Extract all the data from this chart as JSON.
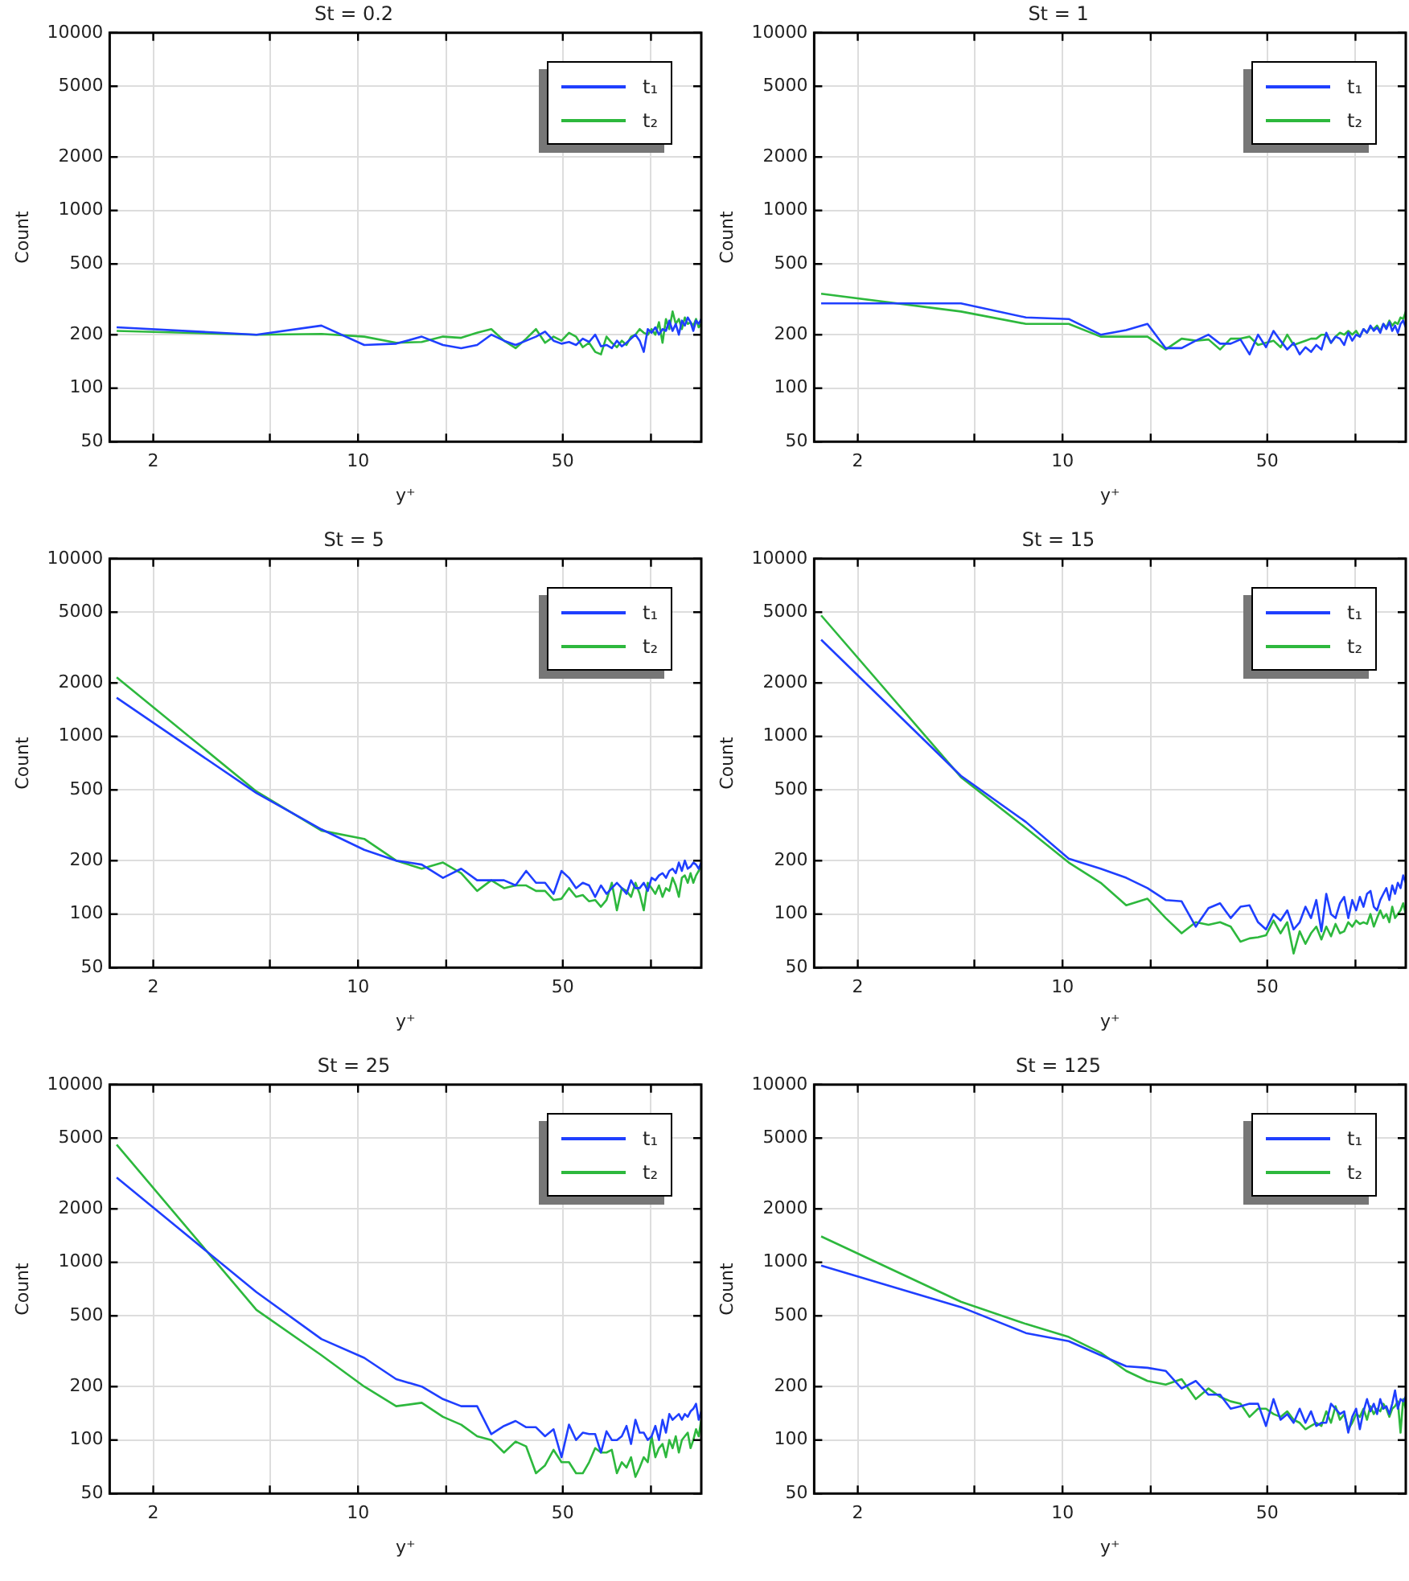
{
  "chart_data": [
    {
      "type": "line",
      "title": "St = 0.2",
      "xlabel": "y⁺",
      "ylabel": "Count",
      "log": "xy",
      "grid": true,
      "legend": "top right",
      "xlim": [
        1.42,
        148.5
      ],
      "ylim": [
        50,
        10000
      ],
      "xticks": [
        2,
        {
          "value": 5,
          "label": null
        },
        10,
        {
          "value": 20,
          "label": null
        },
        50,
        {
          "value": 100,
          "label": null
        }
      ],
      "yticks": [
        50,
        100,
        200,
        500,
        1000,
        2000,
        5000,
        10000
      ],
      "x": [
        1.5,
        4.5,
        7.5,
        10.5,
        13.5,
        16.5,
        19.5,
        22.5,
        25.5,
        28.5,
        31.5,
        34.5,
        37.5,
        40.5,
        43.5,
        46.5,
        49.5,
        52.5,
        55.5,
        58.5,
        61.5,
        64.5,
        67.5,
        70.5,
        73.5,
        76.5,
        79.5,
        82.5,
        85.5,
        88.5,
        91.5,
        94.5,
        97.5,
        100.5,
        103.5,
        106.5,
        109.5,
        112.5,
        115.5,
        118.5,
        121.5,
        124.5,
        127.5,
        130.5,
        133.5,
        136.5,
        139.5,
        142.5,
        145.5,
        148.5
      ],
      "series": [
        {
          "name": "t₁",
          "color": "#1f3fff",
          "values": [
            220,
            200,
            225,
            175,
            178,
            195,
            175,
            168,
            175,
            200,
            185,
            175,
            185,
            195,
            208,
            185,
            178,
            182,
            175,
            190,
            182,
            200,
            172,
            175,
            168,
            185,
            172,
            180,
            190,
            200,
            185,
            160,
            215,
            205,
            220,
            200,
            215,
            210,
            240,
            210,
            230,
            200,
            240,
            225,
            250,
            235,
            210,
            240,
            230,
            245
          ]
        },
        {
          "name": "t₂",
          "color": "#2db83d",
          "values": [
            210,
            200,
            202,
            195,
            180,
            182,
            195,
            192,
            205,
            215,
            185,
            168,
            190,
            215,
            180,
            195,
            185,
            205,
            195,
            170,
            180,
            160,
            155,
            195,
            180,
            170,
            185,
            175,
            195,
            200,
            215,
            205,
            200,
            215,
            200,
            235,
            180,
            245,
            215,
            270,
            230,
            245,
            215,
            250,
            230,
            235,
            225,
            245,
            220,
            230
          ]
        }
      ]
    },
    {
      "type": "line",
      "title": "St = 1",
      "xlabel": "y⁺",
      "ylabel": "Count",
      "log": "xy",
      "grid": true,
      "legend": "top right",
      "xlim": [
        1.42,
        148.5
      ],
      "ylim": [
        50,
        10000
      ],
      "xticks": [
        2,
        {
          "value": 5,
          "label": null
        },
        10,
        {
          "value": 20,
          "label": null
        },
        50,
        {
          "value": 100,
          "label": null
        }
      ],
      "yticks": [
        50,
        100,
        200,
        500,
        1000,
        2000,
        5000,
        10000
      ],
      "x": [
        1.5,
        4.5,
        7.5,
        10.5,
        13.5,
        16.5,
        19.5,
        22.5,
        25.5,
        28.5,
        31.5,
        34.5,
        37.5,
        40.5,
        43.5,
        46.5,
        49.5,
        52.5,
        55.5,
        58.5,
        61.5,
        64.5,
        67.5,
        70.5,
        73.5,
        76.5,
        79.5,
        82.5,
        85.5,
        88.5,
        91.5,
        94.5,
        97.5,
        100.5,
        103.5,
        106.5,
        109.5,
        112.5,
        115.5,
        118.5,
        121.5,
        124.5,
        127.5,
        130.5,
        133.5,
        136.5,
        139.5,
        142.5,
        145.5,
        148.5
      ],
      "series": [
        {
          "name": "t₁",
          "color": "#1f3fff",
          "values": [
            300,
            300,
            250,
            245,
            200,
            212,
            230,
            168,
            168,
            185,
            200,
            178,
            178,
            188,
            155,
            200,
            170,
            210,
            185,
            165,
            180,
            155,
            170,
            160,
            175,
            165,
            205,
            180,
            195,
            190,
            175,
            205,
            185,
            200,
            195,
            215,
            205,
            225,
            210,
            220,
            205,
            230,
            215,
            235,
            210,
            225,
            205,
            230,
            240,
            220
          ]
        },
        {
          "name": "t₂",
          "color": "#2db83d",
          "values": [
            340,
            270,
            230,
            230,
            195,
            195,
            195,
            165,
            190,
            185,
            188,
            165,
            190,
            190,
            195,
            175,
            180,
            185,
            170,
            200,
            175,
            180,
            185,
            190,
            190,
            200,
            200,
            180,
            195,
            205,
            200,
            210,
            200,
            210,
            195,
            215,
            205,
            220,
            215,
            225,
            210,
            230,
            220,
            240,
            225,
            235,
            230,
            250,
            245,
            270
          ]
        }
      ]
    },
    {
      "type": "line",
      "title": "St = 5",
      "xlabel": "y⁺",
      "ylabel": "Count",
      "log": "xy",
      "grid": true,
      "legend": "top right",
      "xlim": [
        1.42,
        148.5
      ],
      "ylim": [
        50,
        10000
      ],
      "xticks": [
        2,
        {
          "value": 5,
          "label": null
        },
        10,
        {
          "value": 20,
          "label": null
        },
        50,
        {
          "value": 100,
          "label": null
        }
      ],
      "yticks": [
        50,
        100,
        200,
        500,
        1000,
        2000,
        5000,
        10000
      ],
      "x": [
        1.5,
        4.5,
        7.5,
        10.5,
        13.5,
        16.5,
        19.5,
        22.5,
        25.5,
        28.5,
        31.5,
        34.5,
        37.5,
        40.5,
        43.5,
        46.5,
        49.5,
        52.5,
        55.5,
        58.5,
        61.5,
        64.5,
        67.5,
        70.5,
        73.5,
        76.5,
        79.5,
        82.5,
        85.5,
        88.5,
        91.5,
        94.5,
        97.5,
        100.5,
        103.5,
        106.5,
        109.5,
        112.5,
        115.5,
        118.5,
        121.5,
        124.5,
        127.5,
        130.5,
        133.5,
        136.5,
        139.5,
        142.5,
        145.5,
        148.5
      ],
      "series": [
        {
          "name": "t₁",
          "color": "#1f3fff",
          "values": [
            1650,
            480,
            300,
            230,
            200,
            190,
            160,
            180,
            155,
            155,
            155,
            145,
            175,
            150,
            150,
            130,
            175,
            160,
            140,
            150,
            145,
            125,
            145,
            130,
            140,
            150,
            140,
            130,
            155,
            140,
            140,
            150,
            135,
            160,
            155,
            165,
            170,
            160,
            175,
            180,
            170,
            195,
            175,
            200,
            180,
            185,
            195,
            190,
            180,
            195
          ]
        },
        {
          "name": "t₂",
          "color": "#2db83d",
          "values": [
            2150,
            490,
            295,
            265,
            200,
            180,
            195,
            170,
            135,
            155,
            140,
            145,
            145,
            135,
            135,
            120,
            122,
            140,
            125,
            128,
            118,
            120,
            110,
            120,
            150,
            105,
            140,
            135,
            125,
            150,
            130,
            105,
            150,
            140,
            130,
            145,
            125,
            140,
            135,
            160,
            145,
            125,
            160,
            165,
            150,
            170,
            150,
            165,
            175,
            190
          ]
        }
      ]
    },
    {
      "type": "line",
      "title": "St = 15",
      "xlabel": "y⁺",
      "ylabel": "Count",
      "log": "xy",
      "grid": true,
      "legend": "top right",
      "xlim": [
        1.42,
        148.5
      ],
      "ylim": [
        50,
        10000
      ],
      "xticks": [
        2,
        {
          "value": 5,
          "label": null
        },
        10,
        {
          "value": 20,
          "label": null
        },
        50,
        {
          "value": 100,
          "label": null
        }
      ],
      "yticks": [
        50,
        100,
        200,
        500,
        1000,
        2000,
        5000,
        10000
      ],
      "x": [
        1.5,
        4.5,
        7.5,
        10.5,
        13.5,
        16.5,
        19.5,
        22.5,
        25.5,
        28.5,
        31.5,
        34.5,
        37.5,
        40.5,
        43.5,
        46.5,
        49.5,
        52.5,
        55.5,
        58.5,
        61.5,
        64.5,
        67.5,
        70.5,
        73.5,
        76.5,
        79.5,
        82.5,
        85.5,
        88.5,
        91.5,
        94.5,
        97.5,
        100.5,
        103.5,
        106.5,
        109.5,
        112.5,
        115.5,
        118.5,
        121.5,
        124.5,
        127.5,
        130.5,
        133.5,
        136.5,
        139.5,
        142.5,
        145.5,
        148.5
      ],
      "series": [
        {
          "name": "t₁",
          "color": "#1f3fff",
          "values": [
            3500,
            600,
            330,
            205,
            180,
            160,
            140,
            120,
            118,
            85,
            108,
            115,
            95,
            110,
            112,
            90,
            82,
            100,
            92,
            105,
            82,
            90,
            110,
            95,
            120,
            80,
            130,
            100,
            95,
            115,
            125,
            95,
            120,
            105,
            125,
            110,
            130,
            135,
            110,
            105,
            120,
            130,
            140,
            120,
            145,
            130,
            150,
            140,
            165,
            150
          ]
        },
        {
          "name": "t₂",
          "color": "#2db83d",
          "values": [
            4800,
            590,
            305,
            195,
            150,
            112,
            122,
            95,
            78,
            90,
            87,
            90,
            85,
            70,
            73,
            74,
            76,
            92,
            78,
            90,
            60,
            80,
            68,
            78,
            85,
            72,
            85,
            75,
            88,
            78,
            80,
            90,
            85,
            92,
            88,
            90,
            88,
            100,
            85,
            95,
            105,
            95,
            100,
            90,
            110,
            95,
            100,
            105,
            115,
            100
          ]
        }
      ]
    },
    {
      "type": "line",
      "title": "St = 25",
      "xlabel": "y⁺",
      "ylabel": "Count",
      "log": "xy",
      "grid": true,
      "legend": "top right",
      "xlim": [
        1.42,
        148.5
      ],
      "ylim": [
        50,
        10000
      ],
      "xticks": [
        2,
        {
          "value": 5,
          "label": null
        },
        10,
        {
          "value": 20,
          "label": null
        },
        50,
        {
          "value": 100,
          "label": null
        }
      ],
      "yticks": [
        50,
        100,
        200,
        500,
        1000,
        2000,
        5000,
        10000
      ],
      "x": [
        1.5,
        4.5,
        7.5,
        10.5,
        13.5,
        16.5,
        19.5,
        22.5,
        25.5,
        28.5,
        31.5,
        34.5,
        37.5,
        40.5,
        43.5,
        46.5,
        49.5,
        52.5,
        55.5,
        58.5,
        61.5,
        64.5,
        67.5,
        70.5,
        73.5,
        76.5,
        79.5,
        82.5,
        85.5,
        88.5,
        91.5,
        94.5,
        97.5,
        100.5,
        103.5,
        106.5,
        109.5,
        112.5,
        115.5,
        118.5,
        121.5,
        124.5,
        127.5,
        130.5,
        133.5,
        136.5,
        139.5,
        142.5,
        145.5,
        148.5
      ],
      "series": [
        {
          "name": "t₁",
          "color": "#1f3fff",
          "values": [
            3000,
            680,
            370,
            290,
            220,
            200,
            170,
            155,
            155,
            108,
            120,
            128,
            118,
            118,
            105,
            115,
            80,
            122,
            100,
            110,
            108,
            108,
            85,
            112,
            100,
            100,
            105,
            120,
            95,
            130,
            110,
            110,
            100,
            105,
            120,
            100,
            130,
            110,
            140,
            130,
            135,
            140,
            130,
            140,
            135,
            145,
            150,
            160,
            130,
            145
          ]
        },
        {
          "name": "t₂",
          "color": "#2db83d",
          "values": [
            4600,
            540,
            300,
            200,
            155,
            162,
            135,
            122,
            105,
            100,
            85,
            98,
            92,
            65,
            72,
            88,
            75,
            75,
            65,
            65,
            75,
            90,
            85,
            85,
            88,
            65,
            75,
            70,
            80,
            62,
            70,
            80,
            75,
            105,
            80,
            90,
            95,
            80,
            100,
            90,
            105,
            85,
            100,
            105,
            110,
            90,
            100,
            115,
            105,
            130
          ]
        }
      ]
    },
    {
      "type": "line",
      "title": "St = 125",
      "xlabel": "y⁺",
      "ylabel": "Count",
      "log": "xy",
      "grid": true,
      "legend": "top right",
      "xlim": [
        1.42,
        148.5
      ],
      "ylim": [
        50,
        10000
      ],
      "xticks": [
        2,
        {
          "value": 5,
          "label": null
        },
        10,
        {
          "value": 20,
          "label": null
        },
        50,
        {
          "value": 100,
          "label": null
        }
      ],
      "yticks": [
        50,
        100,
        200,
        500,
        1000,
        2000,
        5000,
        10000
      ],
      "x": [
        1.5,
        4.5,
        7.5,
        10.5,
        13.5,
        16.5,
        19.5,
        22.5,
        25.5,
        28.5,
        31.5,
        34.5,
        37.5,
        40.5,
        43.5,
        46.5,
        49.5,
        52.5,
        55.5,
        58.5,
        61.5,
        64.5,
        67.5,
        70.5,
        73.5,
        76.5,
        79.5,
        82.5,
        85.5,
        88.5,
        91.5,
        94.5,
        97.5,
        100.5,
        103.5,
        106.5,
        109.5,
        112.5,
        115.5,
        118.5,
        121.5,
        124.5,
        127.5,
        130.5,
        133.5,
        136.5,
        139.5,
        142.5,
        145.5,
        148.5
      ],
      "series": [
        {
          "name": "t₁",
          "color": "#1f3fff",
          "values": [
            960,
            560,
            400,
            360,
            300,
            260,
            255,
            245,
            195,
            215,
            180,
            180,
            150,
            155,
            160,
            160,
            120,
            170,
            130,
            140,
            125,
            150,
            125,
            145,
            120,
            125,
            125,
            160,
            150,
            140,
            145,
            110,
            135,
            150,
            115,
            145,
            170,
            145,
            160,
            140,
            170,
            150,
            155,
            140,
            160,
            190,
            150,
            170,
            165,
            175
          ]
        },
        {
          "name": "t₂",
          "color": "#2db83d",
          "values": [
            1400,
            600,
            450,
            380,
            310,
            245,
            215,
            205,
            220,
            170,
            195,
            175,
            165,
            160,
            135,
            150,
            150,
            140,
            135,
            145,
            130,
            125,
            115,
            120,
            125,
            120,
            145,
            125,
            155,
            130,
            140,
            115,
            125,
            140,
            135,
            150,
            130,
            155,
            140,
            150,
            145,
            160,
            150,
            135,
            150,
            155,
            165,
            110,
            170,
            150
          ]
        }
      ]
    }
  ]
}
